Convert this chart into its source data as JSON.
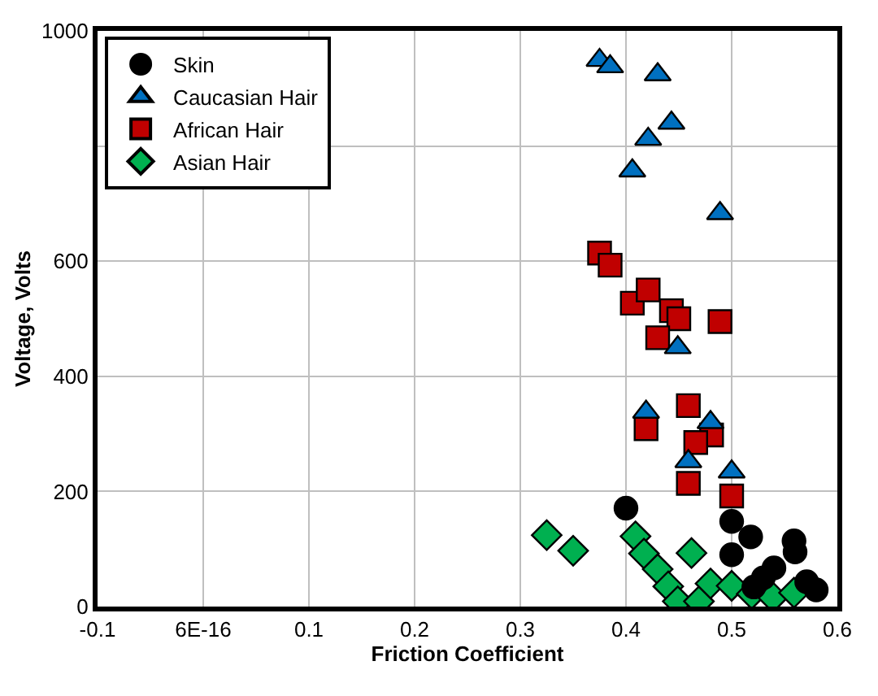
{
  "chart_data": {
    "type": "scatter",
    "xlabel": "Friction Coefficient",
    "ylabel": "Voltage, Volts",
    "xlim": [
      -0.1,
      0.6
    ],
    "xticks": [
      -0.1,
      {
        "value": 0,
        "label": "6E-16"
      },
      0.1,
      0.2,
      0.3,
      0.4,
      0.5,
      0.6
    ],
    "ylim": [
      0,
      1000
    ],
    "yticks": [
      0,
      200,
      400,
      600,
      {
        "value": 800,
        "label": null
      },
      1000
    ],
    "grid": true,
    "legend": "top left",
    "series": [
      {
        "name": "Skin",
        "color": "#000000",
        "marker": "circle",
        "x": [
          0.4,
          0.5,
          0.518,
          0.5,
          0.559,
          0.56,
          0.54,
          0.53,
          0.571,
          0.58,
          0.521
        ],
        "values": [
          171,
          148,
          121,
          90,
          114,
          95,
          67,
          50,
          43,
          29,
          34
        ]
      },
      {
        "name": "Caucasian Hair",
        "color": "#0070c0",
        "marker": "triangle",
        "x": [
          0.375,
          0.385,
          0.43,
          0.443,
          0.421,
          0.406,
          0.489,
          0.449,
          0.419,
          0.48,
          0.459,
          0.5
        ],
        "values": [
          949,
          938,
          924,
          840,
          812,
          757,
          683,
          450,
          338,
          320,
          252,
          234
        ]
      },
      {
        "name": "African Hair",
        "color": "#c00000",
        "marker": "square",
        "x": [
          0.375,
          0.385,
          0.406,
          0.421,
          0.443,
          0.45,
          0.489,
          0.43,
          0.459,
          0.419,
          0.481,
          0.466,
          0.459,
          0.5
        ],
        "values": [
          614,
          593,
          527,
          550,
          514,
          500,
          495,
          467,
          349,
          309,
          298,
          285,
          214,
          192
        ]
      },
      {
        "name": "Asian Hair",
        "color": "#00b050",
        "marker": "diamond",
        "x": [
          0.325,
          0.35,
          0.409,
          0.417,
          0.43,
          0.44,
          0.449,
          0.462,
          0.469,
          0.48,
          0.5,
          0.519,
          0.539,
          0.559
        ],
        "values": [
          124,
          97,
          122,
          92,
          65,
          35,
          9,
          93,
          9,
          40,
          36,
          22,
          16,
          24
        ]
      }
    ]
  }
}
